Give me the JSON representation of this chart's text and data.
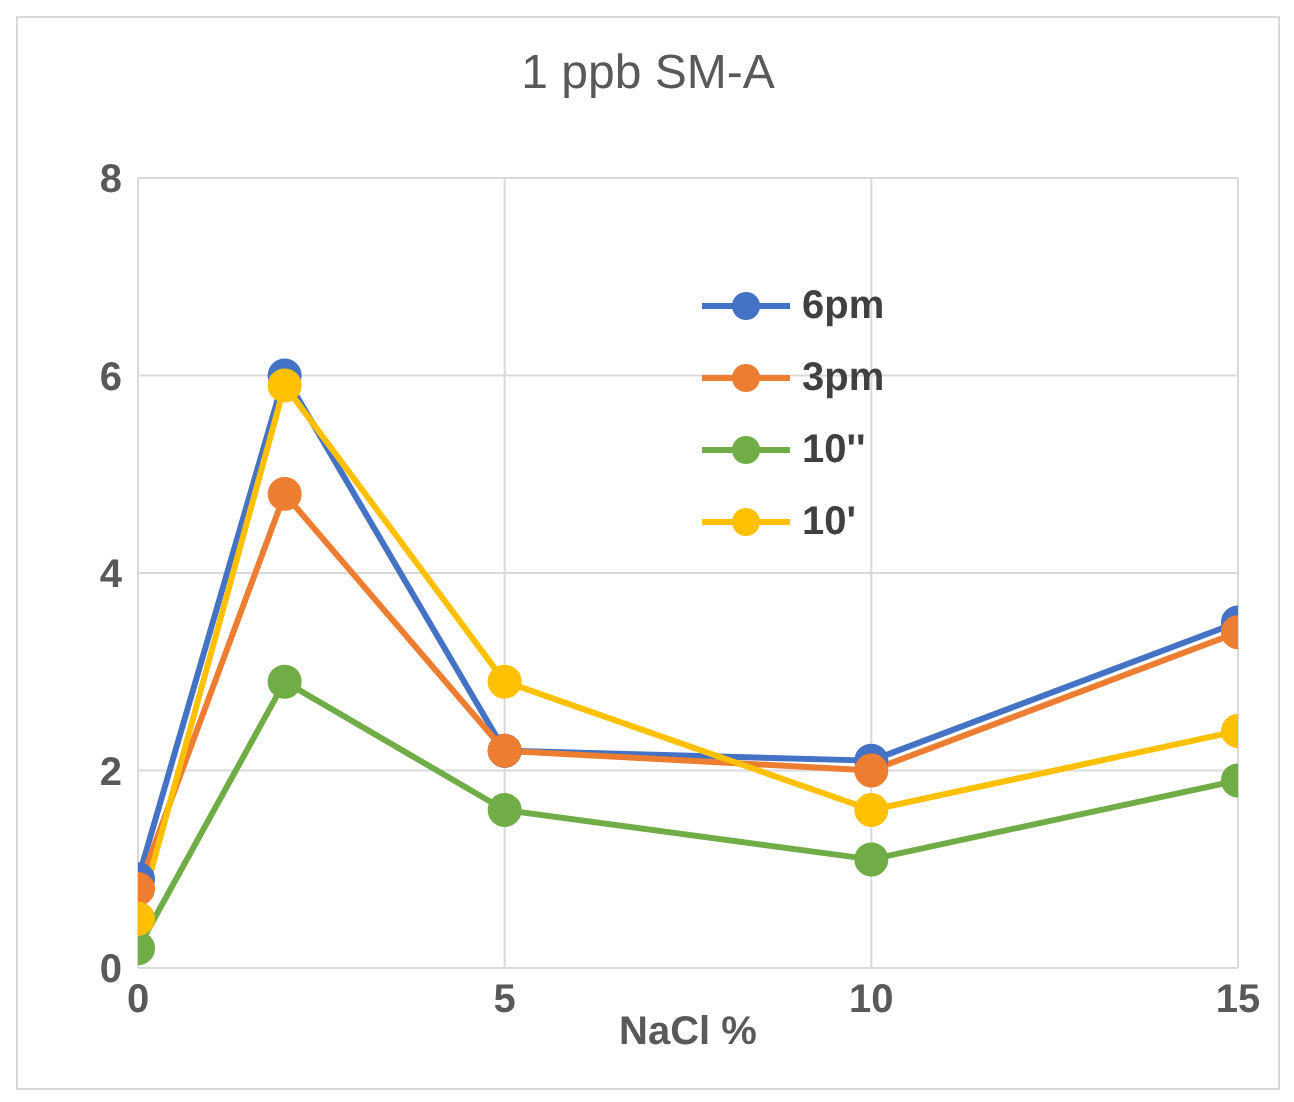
{
  "chart_data": {
    "type": "line",
    "title": "1 ppb SM-A",
    "xlabel": "NaCl %",
    "x": [
      0,
      2,
      5,
      10,
      15
    ],
    "series": [
      {
        "name": "6pm",
        "color": "#4472c4",
        "values": [
          0.9,
          6.0,
          2.2,
          2.1,
          3.5
        ]
      },
      {
        "name": "3pm",
        "color": "#ed7d31",
        "values": [
          0.8,
          4.8,
          2.2,
          2.0,
          3.4
        ]
      },
      {
        "name": "10''",
        "color": "#70ad47",
        "values": [
          0.2,
          2.9,
          1.6,
          1.1,
          1.9
        ]
      },
      {
        "name": "10'",
        "color": "#ffc000",
        "values": [
          0.5,
          5.9,
          2.9,
          1.6,
          2.4
        ]
      }
    ],
    "xlim": [
      0,
      15
    ],
    "xticks": [
      0,
      5,
      10,
      15
    ],
    "ylim": [
      0,
      8
    ],
    "yticks": [
      0,
      2,
      4,
      6,
      8
    ],
    "grid": true,
    "legend": "top right",
    "marker": "circle"
  }
}
